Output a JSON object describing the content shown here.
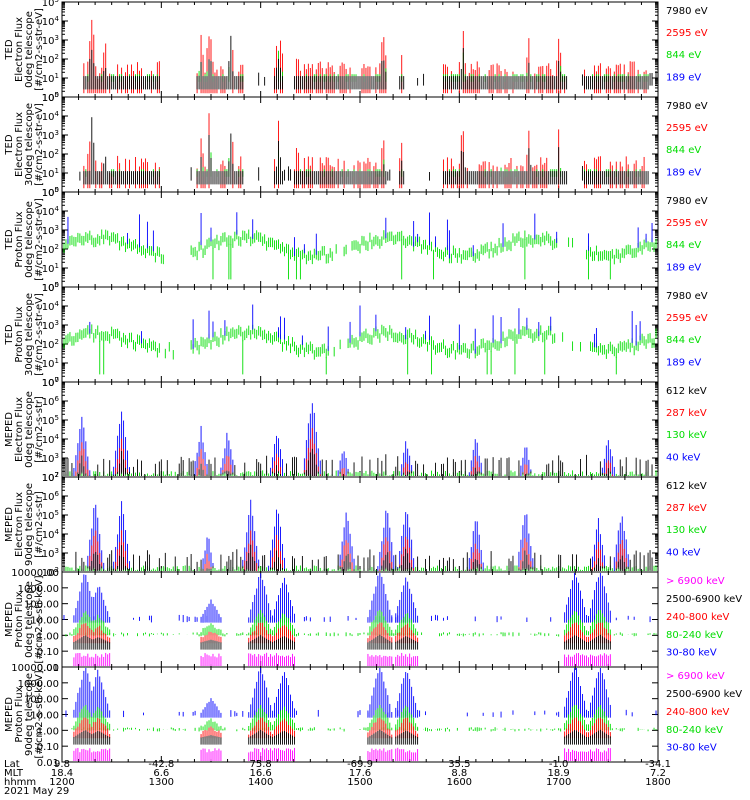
{
  "chart_data": {
    "type": "line",
    "colors": {
      "black": "#000000",
      "red": "#ff0000",
      "green": "#00dd00",
      "blue": "#0000ff",
      "magenta": "#ff00ff"
    },
    "x_axis": {
      "rows": [
        {
          "label": "Lat",
          "values": [
            "9.8",
            "-42.8",
            "75.8",
            "-69.9",
            "35.5",
            "-1.0",
            "-34.1"
          ]
        },
        {
          "label": "MLT",
          "values": [
            "18.4",
            "6.6",
            "16.6",
            "17.6",
            "8.8",
            "18.9",
            "7.2"
          ]
        },
        {
          "label": "hhmm",
          "values": [
            "1200",
            "1300",
            "1400",
            "1500",
            "1600",
            "1700",
            "1800"
          ]
        }
      ],
      "date": "2021 May 29",
      "hhmm_range": [
        1200,
        1800
      ]
    },
    "panels": [
      {
        "ylabel_lines": [
          "TED",
          "Electron Flux",
          "0deg telescope",
          "[#/cm2-s-str-eV]"
        ],
        "y_scale": "log",
        "ylim": [
          1,
          100000
        ],
        "y_ticks": [
          "10^0",
          "10^1",
          "10^2",
          "10^3",
          "10^4",
          "10^5"
        ],
        "legend": [
          {
            "label": "7980 eV",
            "color": "#000000"
          },
          {
            "label": "2595 eV",
            "color": "#ff0000"
          },
          {
            "label": "844 eV",
            "color": "#00dd00"
          },
          {
            "label": "189 eV",
            "color": "#0000ff"
          }
        ]
      },
      {
        "ylabel_lines": [
          "TED",
          "Electron Flux",
          "30deg telescope",
          "[#/cm2-s-str-eV]"
        ],
        "y_scale": "log",
        "ylim": [
          1,
          100000
        ],
        "y_ticks": [
          "10^0",
          "10^1",
          "10^2",
          "10^3",
          "10^4",
          "10^5"
        ],
        "legend": [
          {
            "label": "7980 eV",
            "color": "#000000"
          },
          {
            "label": "2595 eV",
            "color": "#ff0000"
          },
          {
            "label": "844 eV",
            "color": "#00dd00"
          },
          {
            "label": "189 eV",
            "color": "#0000ff"
          }
        ]
      },
      {
        "ylabel_lines": [
          "TED",
          "Proton Flux",
          "0deg telescope",
          "[#/cm2-s-str-eV]"
        ],
        "y_scale": "log",
        "ylim": [
          1,
          100000
        ],
        "y_ticks": [
          "10^0",
          "10^1",
          "10^2",
          "10^3",
          "10^4",
          "10^5"
        ],
        "legend": [
          {
            "label": "7980 eV",
            "color": "#000000"
          },
          {
            "label": "2595 eV",
            "color": "#ff0000"
          },
          {
            "label": "844 eV",
            "color": "#00dd00"
          },
          {
            "label": "189 eV",
            "color": "#0000ff"
          }
        ]
      },
      {
        "ylabel_lines": [
          "TED",
          "Proton Flux",
          "30deg telescope",
          "[#/cm2-s-str-eV]"
        ],
        "y_scale": "log",
        "ylim": [
          1,
          100000
        ],
        "y_ticks": [
          "10^0",
          "10^1",
          "10^2",
          "10^3",
          "10^4",
          "10^5"
        ],
        "legend": [
          {
            "label": "7980 eV",
            "color": "#000000"
          },
          {
            "label": "2595 eV",
            "color": "#ff0000"
          },
          {
            "label": "844 eV",
            "color": "#00dd00"
          },
          {
            "label": "189 eV",
            "color": "#0000ff"
          }
        ]
      },
      {
        "ylabel_lines": [
          "MEPED",
          "Electron Flux",
          "0deg telescope",
          "[#/cm2-s-str]"
        ],
        "y_scale": "log",
        "ylim": [
          100,
          10000000
        ],
        "y_ticks": [
          "10^2",
          "10^3",
          "10^4",
          "10^5",
          "10^6",
          "10^7"
        ],
        "legend": [
          {
            "label": "612 keV",
            "color": "#000000"
          },
          {
            "label": "287 keV",
            "color": "#ff0000"
          },
          {
            "label": "130 keV",
            "color": "#00dd00"
          },
          {
            "label": "40 keV",
            "color": "#0000ff"
          }
        ]
      },
      {
        "ylabel_lines": [
          "MEPED",
          "Electron Flux",
          "90deg telescope",
          "[#/cm2-s-str]"
        ],
        "y_scale": "log",
        "ylim": [
          100,
          10000000
        ],
        "y_ticks": [
          "10^2",
          "10^3",
          "10^4",
          "10^5",
          "10^6",
          "10^7"
        ],
        "legend": [
          {
            "label": "612 keV",
            "color": "#000000"
          },
          {
            "label": "287 keV",
            "color": "#ff0000"
          },
          {
            "label": "130 keV",
            "color": "#00dd00"
          },
          {
            "label": "40 keV",
            "color": "#0000ff"
          }
        ]
      },
      {
        "ylabel_lines": [
          "MEPED",
          "Proton Flux",
          "0deg telescope",
          "[#/cm2-s-str-keV]"
        ],
        "y_scale": "log",
        "ylim": [
          0.01,
          10000
        ],
        "y_ticks": [
          "0.01",
          "0.10",
          "1.00",
          "10.00",
          "100.00",
          "1000.00",
          "10000.00"
        ],
        "legend": [
          {
            "label": "> 6900 keV",
            "color": "#ff00ff"
          },
          {
            "label": "2500-6900 keV",
            "color": "#000000"
          },
          {
            "label": "240-800 keV",
            "color": "#ff0000"
          },
          {
            "label": "80-240 keV",
            "color": "#00dd00"
          },
          {
            "label": "30-80 keV",
            "color": "#0000ff"
          }
        ]
      },
      {
        "ylabel_lines": [
          "MEPED",
          "Proton Flux",
          "90deg telescope",
          "[#/cm2-s-str-keV]"
        ],
        "y_scale": "log",
        "ylim": [
          0.01,
          10000
        ],
        "y_ticks": [
          "0.01",
          "0.10",
          "1.00",
          "10.00",
          "100.00",
          "1000.00",
          "10000.00"
        ],
        "legend": [
          {
            "label": "> 6900 keV",
            "color": "#ff00ff"
          },
          {
            "label": "2500-6900 keV",
            "color": "#000000"
          },
          {
            "label": "240-800 keV",
            "color": "#ff0000"
          },
          {
            "label": "80-240 keV",
            "color": "#00dd00"
          },
          {
            "label": "30-80 keV",
            "color": "#0000ff"
          }
        ]
      }
    ],
    "series_envelopes": {
      "note_units": "hhmm time vs log10 flux, approximate envelope read from gridlines",
      "ted_electron_0": {
        "times": [
          1206,
          1218,
          1226,
          1236,
          1245,
          1308,
          1322,
          1328,
          1340,
          1400,
          1411,
          1430,
          1442,
          1509,
          1525,
          1545,
          1605,
          1631,
          1646,
          1700,
          1714,
          1735,
          1748
        ],
        "log_flux_red": [
          1.2,
          4.8,
          3.7,
          1.5,
          1.5,
          1.6,
          3.5,
          4.5,
          2.8,
          1.3,
          4.9,
          1.4,
          2.3,
          1.3,
          3.8,
          1.4,
          3.5,
          3.6,
          1.5,
          1.3,
          3.9,
          3.7,
          1.3
        ],
        "log_flux_black": [
          1.0,
          3.5,
          2.5,
          1.0,
          1.0,
          1.0,
          3.0,
          3.4,
          1.8,
          1.0,
          3.5,
          1.0,
          1.5,
          1.0,
          2.6,
          1.0,
          2.8,
          2.7,
          1.0,
          1.0,
          3.0,
          2.7,
          1.0
        ]
      },
      "ted_proton_0": {
        "times": [
          1205,
          1220,
          1240,
          1300,
          1330,
          1355,
          1420,
          1440,
          1455,
          1520,
          1540,
          1600,
          1620,
          1640,
          1700,
          1720,
          1740,
          1755
        ],
        "log_flux_green": [
          1.8,
          2.5,
          2.6,
          1.9,
          2.5,
          2.4,
          2.5,
          2.2,
          1.8,
          2.6,
          2.3,
          1.9,
          2.6,
          2.0,
          2.5,
          2.4,
          2.0,
          2.5
        ],
        "log_flux_blue": [
          2.0,
          3.7,
          2.8,
          2.2,
          2.6,
          2.6,
          2.8,
          2.6,
          2.0,
          2.9,
          2.8,
          2.2,
          3.1,
          2.6,
          2.9,
          2.8,
          2.5,
          2.7
        ]
      },
      "meped_electron_0": {
        "times": [
          1206,
          1222,
          1236,
          1250,
          1305,
          1330,
          1345,
          1400,
          1430,
          1450,
          1505,
          1530,
          1550,
          1615,
          1645,
          1700,
          1720,
          1740,
          1755
        ],
        "log_flux_blue": [
          2.5,
          5.5,
          5.5,
          3.0,
          6.0,
          2.5,
          4.5,
          4.6,
          4.4,
          6.3,
          4.0,
          2.5,
          3.8,
          4.0,
          3.8,
          5.0,
          3.8,
          3.6,
          4.4
        ],
        "log_flux_red": [
          2.2,
          3.6,
          4.2,
          2.6,
          4.2,
          2.2,
          3.0,
          3.0,
          2.8,
          3.8,
          3.0,
          2.2,
          3.2,
          3.2,
          3.0,
          3.8,
          3.0,
          3.0,
          3.3
        ]
      },
      "meped_proton_0": {
        "times": [
          1210,
          1222,
          1245,
          1300,
          1320,
          1348,
          1400,
          1428,
          1450,
          1510,
          1530,
          1556,
          1610,
          1630,
          1655,
          1710,
          1730,
          1745,
          1755
        ],
        "log_flux_blue": [
          0.5,
          3.5,
          0.5,
          2.8,
          2.2,
          3.3,
          0.5,
          3.6,
          0.6,
          0.5,
          1.0,
          3.4,
          0.6,
          3.4,
          1.0,
          3.5,
          3.0,
          0.5,
          0.6
        ],
        "log_flux_green": [
          0.0,
          1.8,
          0.0,
          1.2,
          0.0,
          1.5,
          0.0,
          1.8,
          0.0,
          0.0,
          0.0,
          1.8,
          0.0,
          1.7,
          0.0,
          1.8,
          1.7,
          0.0,
          0.0
        ]
      }
    }
  }
}
